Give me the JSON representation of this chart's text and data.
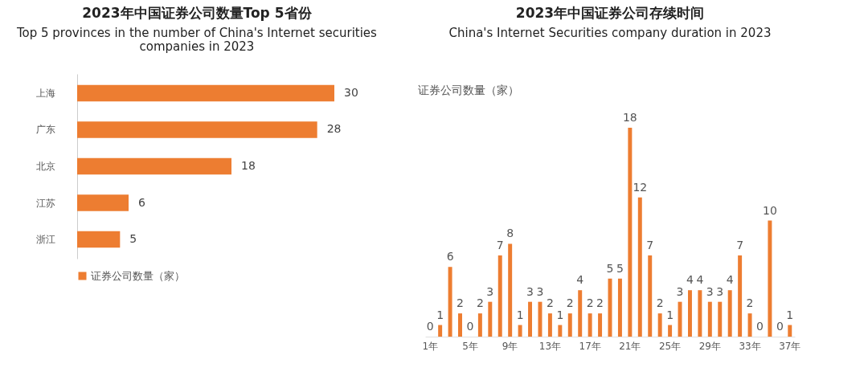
{
  "chart_data": [
    {
      "type": "bar",
      "orientation": "horizontal",
      "title": "2023年中国证券公司数量Top 5省份",
      "subtitle": "Top 5 provinces in the number of China's Internet securities companies in 2023",
      "categories": [
        "上海",
        "广东",
        "北京",
        "江苏",
        "浙江"
      ],
      "series": [
        {
          "name": "证券公司数量（家）",
          "color": "#ed7d31",
          "values": [
            30,
            28,
            18,
            6,
            5
          ]
        }
      ],
      "data_labels": true,
      "legend": "bottom"
    },
    {
      "type": "bar",
      "title": "2023年中国证券公司存续时间",
      "subtitle": "China's Internet Securities company duration in 2023",
      "ylabel": "证券公司数量（家）",
      "categories": [
        "1年",
        null,
        null,
        null,
        "5年",
        null,
        null,
        null,
        "9年",
        null,
        null,
        null,
        "13年",
        null,
        null,
        null,
        "17年",
        null,
        null,
        null,
        "21年",
        null,
        null,
        null,
        "25年",
        null,
        null,
        null,
        "29年",
        null,
        null,
        null,
        "33年",
        null,
        null,
        null,
        "37年"
      ],
      "series": [
        {
          "color": "#ed7d31",
          "values": [
            0,
            1,
            6,
            2,
            0,
            2,
            3,
            7,
            8,
            1,
            3,
            3,
            2,
            1,
            2,
            4,
            2,
            2,
            5,
            5,
            18,
            12,
            7,
            2,
            1,
            3,
            4,
            4,
            3,
            3,
            4,
            7,
            2,
            0,
            10,
            0,
            1
          ]
        }
      ],
      "data_labels": true
    }
  ]
}
